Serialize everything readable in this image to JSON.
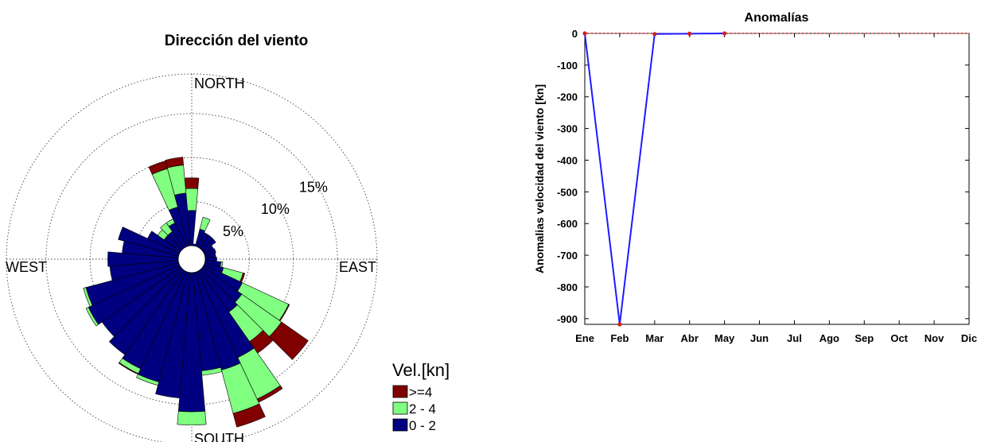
{
  "chart_data": [
    {
      "type": "wind-rose",
      "title": "Dirección del viento",
      "directions": [
        "NORTH",
        "EAST",
        "SOUTH",
        "WEST"
      ],
      "rings": [
        {
          "value": 5,
          "label": "5%"
        },
        {
          "value": 10,
          "label": "10%"
        },
        {
          "value": 15,
          "label": "15%"
        }
      ],
      "max_percent": 19.5,
      "legend": {
        "title": "Vel.[kn]",
        "items": [
          {
            "label": ">=4",
            "color": "#800000"
          },
          {
            "label": "2 - 4",
            "color": "#80ff80"
          },
          {
            "label": "0 - 2",
            "color": "#000080"
          }
        ]
      },
      "sectors": [
        {
          "dir": 0,
          "values": [
            4.0,
            2.5,
            1.2
          ]
        },
        {
          "dir": 10,
          "values": [
            0.2,
            0,
            0
          ]
        },
        {
          "dir": 20,
          "values": [
            2.0,
            1.4,
            0
          ]
        },
        {
          "dir": 30,
          "values": [
            1.8,
            0,
            0
          ]
        },
        {
          "dir": 40,
          "values": [
            1.8,
            0,
            0
          ]
        },
        {
          "dir": 50,
          "values": [
            1.8,
            0,
            0
          ]
        },
        {
          "dir": 60,
          "values": [
            1.2,
            0,
            0
          ]
        },
        {
          "dir": 70,
          "values": [
            1.3,
            0,
            0
          ]
        },
        {
          "dir": 80,
          "values": [
            1.2,
            0,
            0
          ]
        },
        {
          "dir": 90,
          "values": [
            1.3,
            0,
            0
          ]
        },
        {
          "dir": 100,
          "values": [
            1.8,
            0.2,
            0
          ]
        },
        {
          "dir": 110,
          "values": [
            2.2,
            2.3,
            0.2
          ]
        },
        {
          "dir": 120,
          "values": [
            4.8,
            5.8,
            0.1
          ]
        },
        {
          "dir": 130,
          "values": [
            5.4,
            5.5,
            3.7
          ]
        },
        {
          "dir": 140,
          "values": [
            5.8,
            4.1,
            1.6
          ]
        },
        {
          "dir": 150,
          "values": [
            10.8,
            5.2,
            0.4
          ]
        },
        {
          "dir": 160,
          "values": [
            11.5,
            5.1,
            1.6
          ]
        },
        {
          "dir": 170,
          "values": [
            11.2,
            0.5,
            0
          ]
        },
        {
          "dir": 180,
          "values": [
            15.8,
            1.5,
            0
          ]
        },
        {
          "dir": 190,
          "values": [
            14.3,
            0,
            0
          ]
        },
        {
          "dir": 200,
          "values": [
            12.9,
            0.4,
            0
          ]
        },
        {
          "dir": 210,
          "values": [
            12.2,
            0.6,
            0.1
          ]
        },
        {
          "dir": 220,
          "values": [
            11.7,
            0,
            0
          ]
        },
        {
          "dir": 230,
          "values": [
            10.9,
            0,
            0
          ]
        },
        {
          "dir": 240,
          "values": [
            11.4,
            0.3,
            0
          ]
        },
        {
          "dir": 250,
          "values": [
            10.9,
            0.3,
            0
          ]
        },
        {
          "dir": 260,
          "values": [
            7.8,
            0,
            0
          ]
        },
        {
          "dir": 270,
          "values": [
            8.0,
            0,
            0
          ]
        },
        {
          "dir": 280,
          "values": [
            6.4,
            0,
            0
          ]
        },
        {
          "dir": 290,
          "values": [
            7.1,
            0,
            0
          ]
        },
        {
          "dir": 300,
          "values": [
            4.0,
            0,
            0
          ]
        },
        {
          "dir": 310,
          "values": [
            2.3,
            0.9,
            0
          ]
        },
        {
          "dir": 320,
          "values": [
            2.3,
            1.2,
            0
          ]
        },
        {
          "dir": 330,
          "values": [
            3.0,
            0.5,
            0
          ]
        },
        {
          "dir": 340,
          "values": [
            4.6,
            4.5,
            0.9
          ]
        },
        {
          "dir": 350,
          "values": [
            6.0,
            3.2,
            0.9
          ]
        }
      ]
    },
    {
      "type": "line",
      "title": "Anomalías",
      "xlabel": "",
      "ylabel": "Anomalias velocidad del viento [kn]",
      "categories": [
        "Ene",
        "Feb",
        "Mar",
        "Abr",
        "May",
        "Jun",
        "Jul",
        "Ago",
        "Sep",
        "Oct",
        "Nov",
        "Dic"
      ],
      "values": [
        0,
        -918,
        -2,
        -1,
        0,
        null,
        null,
        null,
        null,
        null,
        null,
        null
      ],
      "ylim": [
        -918,
        0
      ],
      "yticks": [
        0,
        -100,
        -200,
        -300,
        -400,
        -500,
        -600,
        -700,
        -800,
        -900
      ],
      "reference_line": 0,
      "line_color": "#1c1cff",
      "marker_color": "#d42020",
      "reference_color": "#d42020"
    }
  ]
}
